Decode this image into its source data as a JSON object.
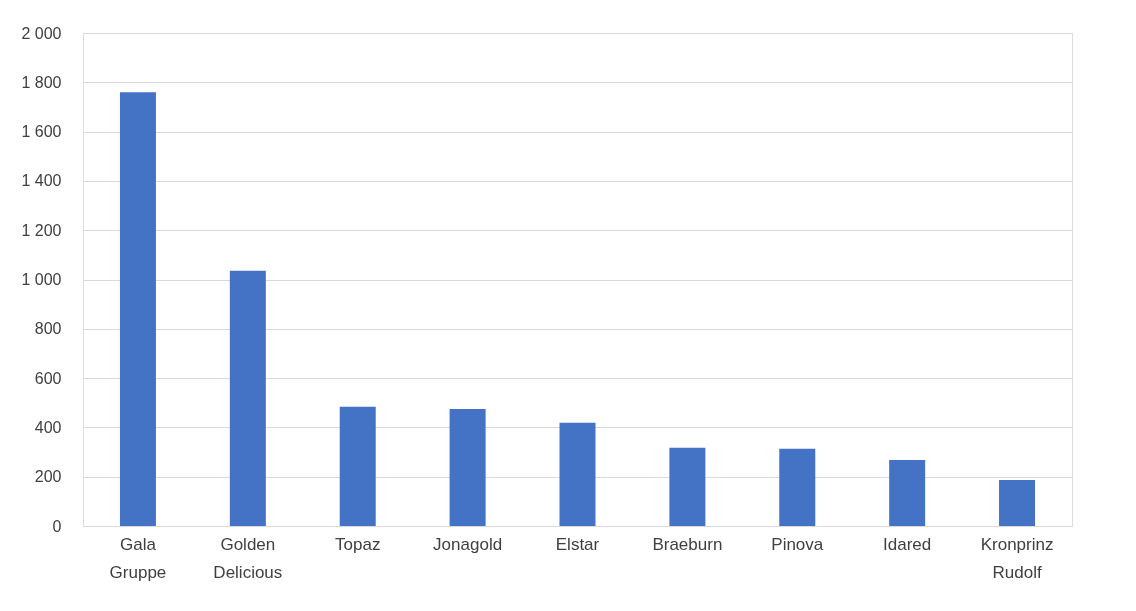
{
  "chart_data": {
    "type": "bar",
    "categories": [
      "Gala Gruppe",
      "Golden Delicious",
      "Topaz",
      "Jonagold",
      "Elstar",
      "Braeburn",
      "Pinova",
      "Idared",
      "Kronprinz Rudolf"
    ],
    "values": [
      1760,
      1035,
      484,
      475,
      419,
      317,
      313,
      268,
      187
    ],
    "color": "#4472c4",
    "ylim": [
      0,
      2000
    ],
    "yticks": [
      0,
      200,
      400,
      600,
      800,
      {
        "value": 1000,
        "label": "1 000"
      },
      {
        "value": 1200,
        "label": "1 200"
      },
      {
        "value": 1400,
        "label": "1 400"
      },
      {
        "value": 1600,
        "label": "1 600"
      },
      {
        "value": 1800,
        "label": "1 800"
      },
      {
        "value": 2000,
        "label": "2 000"
      }
    ],
    "grid": "y"
  }
}
